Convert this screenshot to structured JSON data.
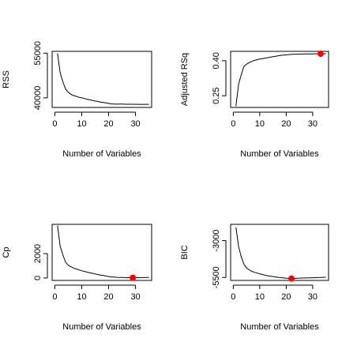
{
  "chart_data": [
    {
      "type": "line",
      "xlabel": "Number of Variables",
      "ylabel": "RSS",
      "xlim": [
        -1,
        36
      ],
      "ylim": [
        36800,
        55600
      ],
      "x_ticks": [
        0,
        10,
        20,
        30
      ],
      "y_ticks": [
        40000,
        55000
      ],
      "x": [
        1,
        2,
        3,
        4,
        5,
        6,
        7,
        8,
        9,
        10,
        11,
        12,
        13,
        14,
        15,
        16,
        17,
        18,
        19,
        20,
        21,
        22,
        23,
        24,
        25,
        26,
        27,
        28,
        29,
        30,
        31,
        32,
        33,
        34,
        35
      ],
      "values": [
        54900,
        48400,
        45400,
        43000,
        41900,
        41200,
        40800,
        40500,
        40200,
        40000,
        39800,
        39550,
        39350,
        39150,
        38950,
        38800,
        38600,
        38450,
        38300,
        38150,
        38000,
        37950,
        37900,
        37900,
        37900,
        37880,
        37870,
        37860,
        37850,
        37850,
        37840,
        37830,
        37830,
        37820,
        37820
      ],
      "highlight": null,
      "point_color": "#ff0000",
      "line_color": "#000000"
    },
    {
      "type": "line",
      "xlabel": "Number of Variables",
      "ylabel": "Adjusted RSq",
      "xlim": [
        -1,
        36
      ],
      "ylim": [
        0.2,
        0.44
      ],
      "x_ticks": [
        0,
        10,
        20,
        30
      ],
      "y_ticks": [
        0.25,
        0.4
      ],
      "y_tick_labels": [
        "0.25",
        "0.40"
      ],
      "x": [
        1,
        2,
        3,
        4,
        5,
        6,
        7,
        8,
        9,
        10,
        11,
        12,
        13,
        14,
        15,
        16,
        17,
        18,
        19,
        20,
        21,
        22,
        23,
        24,
        25,
        26,
        27,
        28,
        29,
        30,
        31,
        32,
        33,
        34,
        35
      ],
      "values": [
        0.205,
        0.3,
        0.34,
        0.375,
        0.385,
        0.392,
        0.397,
        0.401,
        0.404,
        0.407,
        0.409,
        0.411,
        0.413,
        0.415,
        0.417,
        0.419,
        0.421,
        0.423,
        0.424,
        0.425,
        0.426,
        0.427,
        0.4275,
        0.428,
        0.4282,
        0.4284,
        0.4286,
        0.4288,
        0.429,
        0.4292,
        0.4294,
        0.4296,
        0.4298,
        0.43,
        0.43
      ],
      "highlight": {
        "x": 33,
        "y": 0.4298
      },
      "point_color": "#ff0000",
      "line_color": "#000000"
    },
    {
      "type": "line",
      "xlabel": "Number of Variables",
      "ylabel": "Cp",
      "xlim": [
        -1,
        36
      ],
      "ylim": [
        -200,
        4400
      ],
      "x_ticks": [
        0,
        10,
        20,
        30
      ],
      "y_ticks": [
        0,
        2000
      ],
      "x": [
        1,
        2,
        3,
        4,
        5,
        6,
        7,
        8,
        9,
        10,
        11,
        12,
        13,
        14,
        15,
        16,
        17,
        18,
        19,
        20,
        21,
        22,
        23,
        24,
        25,
        26,
        27,
        28,
        29,
        30,
        31,
        32,
        33,
        34,
        35
      ],
      "values": [
        4300,
        2600,
        1900,
        1300,
        1050,
        920,
        820,
        740,
        660,
        600,
        540,
        480,
        430,
        380,
        330,
        280,
        240,
        200,
        160,
        120,
        90,
        70,
        55,
        45,
        38,
        32,
        28,
        25,
        22,
        24,
        28,
        32,
        36,
        40,
        42
      ],
      "highlight": {
        "x": 29,
        "y": 22
      },
      "point_color": "#ff0000",
      "line_color": "#000000"
    },
    {
      "type": "line",
      "xlabel": "Number of Variables",
      "ylabel": "BIC",
      "xlim": [
        -1,
        36
      ],
      "ylim": [
        -5700,
        -1900
      ],
      "x_ticks": [
        0,
        10,
        20,
        30
      ],
      "y_ticks": [
        -5500,
        -3000
      ],
      "x": [
        1,
        2,
        3,
        4,
        5,
        6,
        7,
        8,
        9,
        10,
        11,
        12,
        13,
        14,
        15,
        16,
        17,
        18,
        19,
        20,
        21,
        22,
        23,
        24,
        25,
        26,
        27,
        28,
        29,
        30,
        31,
        32,
        33,
        34,
        35
      ],
      "values": [
        -2100,
        -3400,
        -4100,
        -4600,
        -4850,
        -4980,
        -5080,
        -5150,
        -5200,
        -5250,
        -5300,
        -5340,
        -5380,
        -5410,
        -5440,
        -5465,
        -5490,
        -5510,
        -5530,
        -5550,
        -5560,
        -5570,
        -5565,
        -5555,
        -5545,
        -5540,
        -5535,
        -5530,
        -5525,
        -5520,
        -5515,
        -5510,
        -5500,
        -5490,
        -5480
      ],
      "highlight": {
        "x": 22,
        "y": -5570
      },
      "point_color": "#ff0000",
      "line_color": "#000000"
    }
  ]
}
